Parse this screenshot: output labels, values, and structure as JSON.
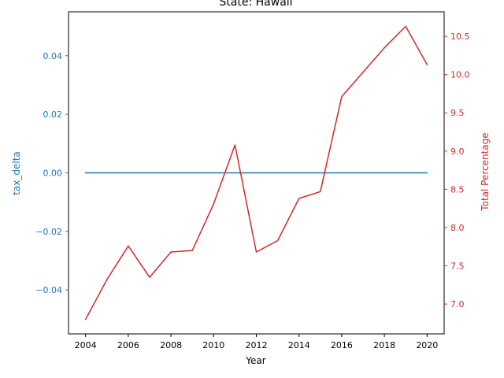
{
  "chart_data": {
    "type": "line",
    "title": "State: Hawaii",
    "xlabel": "Year",
    "x": [
      2004,
      2005,
      2006,
      2007,
      2008,
      2009,
      2010,
      2011,
      2012,
      2013,
      2014,
      2015,
      2016,
      2017,
      2018,
      2019,
      2020
    ],
    "xlim": [
      2003.2,
      2020.8
    ],
    "xticks": [
      2004,
      2006,
      2008,
      2010,
      2012,
      2014,
      2016,
      2018,
      2020
    ],
    "series": [
      {
        "name": "tax_delta",
        "axis": "left",
        "color": "#1f77b4",
        "values": [
          0,
          0,
          0,
          0,
          0,
          0,
          0,
          0,
          0,
          0,
          0,
          0,
          0,
          0,
          0,
          0,
          0
        ]
      },
      {
        "name": "Total Percentage",
        "axis": "right",
        "color": "#d62728",
        "values": [
          6.8,
          7.32,
          7.76,
          7.35,
          7.68,
          7.7,
          8.31,
          9.08,
          7.68,
          7.83,
          8.38,
          8.47,
          9.71,
          10.03,
          10.35,
          10.63,
          10.13
        ]
      }
    ],
    "y_left": {
      "label": "tax_delta",
      "color": "#1f77b4",
      "lim": [
        -0.055,
        0.055
      ],
      "ticks": [
        -0.04,
        -0.02,
        0.0,
        0.02,
        0.04
      ],
      "tick_labels": [
        "−0.04",
        "−0.02",
        "0.00",
        "0.02",
        "0.04"
      ]
    },
    "y_right": {
      "label": "Total Percentage",
      "color": "#d62728",
      "lim": [
        6.61,
        10.82
      ],
      "ticks": [
        7.0,
        7.5,
        8.0,
        8.5,
        9.0,
        9.5,
        10.0,
        10.5
      ],
      "tick_labels": [
        "7.0",
        "7.5",
        "8.0",
        "8.5",
        "9.0",
        "9.5",
        "10.0",
        "10.5"
      ]
    },
    "grid": false
  }
}
